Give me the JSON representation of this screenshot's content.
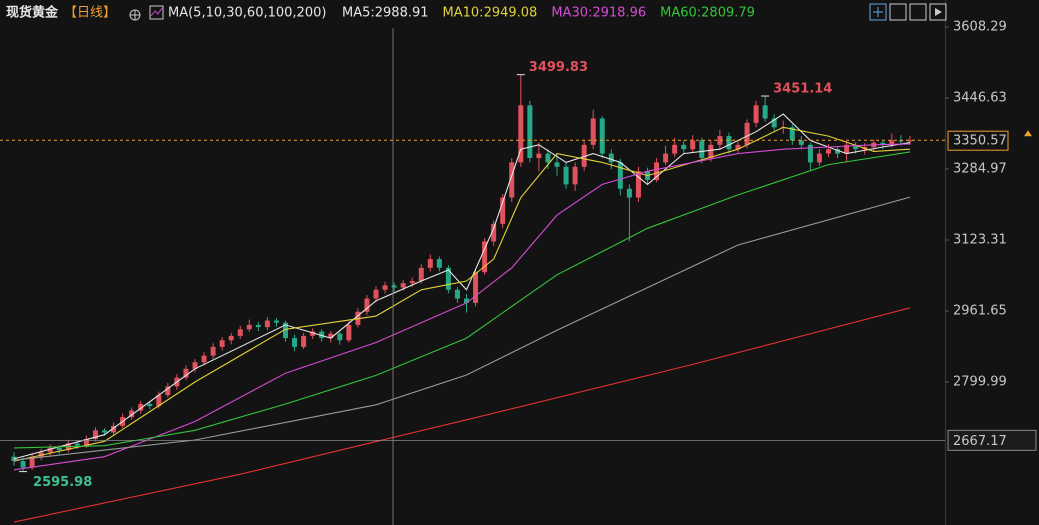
{
  "chart_data": {
    "type": "candlestick",
    "title": "现货黄金",
    "period": "【日线】",
    "ma_label": "MA(5,10,30,60,100,200)",
    "ma_legend": [
      {
        "text": "MA5:2988.91",
        "color": "#e6e6e6"
      },
      {
        "text": "MA10:2949.08",
        "color": "#e2d13a"
      },
      {
        "text": "MA30:2918.96",
        "color": "#d64bd6"
      },
      {
        "text": "MA60:2809.79",
        "color": "#35c43a"
      }
    ],
    "up_color": "#e0525e",
    "down_color": "#27a887",
    "ylim": [
      2474.4,
      3669.8
    ],
    "yticks": [
      3608.29,
      3446.63,
      3284.97,
      3123.31,
      2961.65,
      2799.99
    ],
    "crosshair_value": 2667.17,
    "ohlc": [
      [
        2630,
        2640,
        2610,
        2620
      ],
      [
        2620,
        2628,
        2595.98,
        2605
      ],
      [
        2605,
        2638,
        2600,
        2630
      ],
      [
        2630,
        2648,
        2622,
        2640
      ],
      [
        2640,
        2658,
        2632,
        2650
      ],
      [
        2650,
        2656,
        2636,
        2645
      ],
      [
        2645,
        2668,
        2640,
        2660
      ],
      [
        2660,
        2665,
        2648,
        2655
      ],
      [
        2655,
        2678,
        2650,
        2670
      ],
      [
        2670,
        2697,
        2665,
        2690
      ],
      [
        2690,
        2695,
        2678,
        2685
      ],
      [
        2685,
        2708,
        2680,
        2700
      ],
      [
        2700,
        2728,
        2695,
        2720
      ],
      [
        2720,
        2742,
        2714,
        2735
      ],
      [
        2735,
        2757,
        2728,
        2750
      ],
      [
        2750,
        2756,
        2738,
        2745
      ],
      [
        2745,
        2778,
        2740,
        2770
      ],
      [
        2770,
        2798,
        2765,
        2790
      ],
      [
        2790,
        2818,
        2782,
        2810
      ],
      [
        2810,
        2838,
        2804,
        2830
      ],
      [
        2830,
        2852,
        2822,
        2845
      ],
      [
        2845,
        2868,
        2838,
        2860
      ],
      [
        2860,
        2888,
        2852,
        2880
      ],
      [
        2880,
        2902,
        2872,
        2895
      ],
      [
        2895,
        2912,
        2886,
        2905
      ],
      [
        2905,
        2928,
        2898,
        2920
      ],
      [
        2920,
        2942,
        2914,
        2930
      ],
      [
        2930,
        2936,
        2916,
        2925
      ],
      [
        2925,
        2948,
        2918,
        2940
      ],
      [
        2940,
        2946,
        2926,
        2935
      ],
      [
        2935,
        2940,
        2892,
        2900
      ],
      [
        2900,
        2908,
        2870,
        2880
      ],
      [
        2880,
        2912,
        2875,
        2905
      ],
      [
        2905,
        2922,
        2898,
        2915
      ],
      [
        2915,
        2920,
        2892,
        2900
      ],
      [
        2900,
        2916,
        2890,
        2910
      ],
      [
        2910,
        2914,
        2885,
        2895
      ],
      [
        2895,
        2938,
        2890,
        2930
      ],
      [
        2930,
        2968,
        2924,
        2960
      ],
      [
        2960,
        2998,
        2952,
        2990
      ],
      [
        2990,
        3018,
        2982,
        3010
      ],
      [
        3010,
        3028,
        3002,
        3020
      ],
      [
        3020,
        3026,
        3006,
        3015
      ],
      [
        3015,
        3032,
        3008,
        3025
      ],
      [
        3025,
        3038,
        3016,
        3030
      ],
      [
        3030,
        3068,
        3024,
        3060
      ],
      [
        3060,
        3090,
        3052,
        3080
      ],
      [
        3080,
        3086,
        3052,
        3060
      ],
      [
        3060,
        3066,
        3002,
        3010
      ],
      [
        3010,
        3016,
        2980,
        2990
      ],
      [
        2990,
        3000,
        2958,
        2980
      ],
      [
        2980,
        3058,
        2972,
        3050
      ],
      [
        3050,
        3128,
        3044,
        3120
      ],
      [
        3120,
        3168,
        3110,
        3160
      ],
      [
        3160,
        3228,
        3150,
        3220
      ],
      [
        3220,
        3310,
        3210,
        3300
      ],
      [
        3300,
        3499.83,
        3290,
        3430
      ],
      [
        3430,
        3440,
        3300,
        3310
      ],
      [
        3310,
        3345,
        3280,
        3320
      ],
      [
        3320,
        3330,
        3285,
        3300
      ],
      [
        3300,
        3318,
        3270,
        3290
      ],
      [
        3290,
        3300,
        3240,
        3250
      ],
      [
        3250,
        3300,
        3235,
        3290
      ],
      [
        3290,
        3350,
        3280,
        3340
      ],
      [
        3340,
        3420,
        3330,
        3400
      ],
      [
        3400,
        3405,
        3310,
        3320
      ],
      [
        3320,
        3330,
        3285,
        3300
      ],
      [
        3300,
        3308,
        3225,
        3240
      ],
      [
        3240,
        3250,
        3120,
        3220
      ],
      [
        3220,
        3290,
        3210,
        3280
      ],
      [
        3280,
        3288,
        3250,
        3260
      ],
      [
        3260,
        3310,
        3255,
        3300
      ],
      [
        3300,
        3338,
        3294,
        3320
      ],
      [
        3320,
        3356,
        3312,
        3340
      ],
      [
        3340,
        3350,
        3318,
        3330
      ],
      [
        3330,
        3362,
        3322,
        3350
      ],
      [
        3350,
        3356,
        3298,
        3310
      ],
      [
        3310,
        3350,
        3302,
        3340
      ],
      [
        3340,
        3374,
        3330,
        3360
      ],
      [
        3360,
        3368,
        3320,
        3330
      ],
      [
        3330,
        3350,
        3322,
        3340
      ],
      [
        3340,
        3398,
        3332,
        3390
      ],
      [
        3390,
        3440,
        3380,
        3430
      ],
      [
        3430,
        3451.14,
        3392,
        3400
      ],
      [
        3400,
        3410,
        3372,
        3380
      ],
      [
        3380,
        3395,
        3365,
        3380
      ],
      [
        3380,
        3386,
        3340,
        3350
      ],
      [
        3350,
        3360,
        3330,
        3340
      ],
      [
        3340,
        3345,
        3280,
        3300
      ],
      [
        3300,
        3330,
        3292,
        3320
      ],
      [
        3320,
        3342,
        3312,
        3330
      ],
      [
        3330,
        3336,
        3310,
        3320
      ],
      [
        3320,
        3348,
        3302,
        3340
      ],
      [
        3340,
        3346,
        3320,
        3330
      ],
      [
        3330,
        3344,
        3318,
        3335
      ],
      [
        3335,
        3352,
        3326,
        3345
      ],
      [
        3345,
        3350,
        3330,
        3340
      ],
      [
        3340,
        3366,
        3334,
        3350
      ],
      [
        3350,
        3362,
        3338,
        3348
      ],
      [
        3348,
        3360,
        3340,
        3350.57
      ]
    ],
    "ma_lines": [
      {
        "color": "#e6e6e6",
        "x": [
          0,
          10,
          20,
          30,
          35,
          40,
          45,
          48,
          50,
          53,
          56,
          58,
          61,
          64,
          67,
          70,
          74,
          78,
          82,
          85,
          88,
          92,
          96,
          99
        ],
        "values": [
          2625,
          2680,
          2830,
          2930,
          2900,
          2985,
          3030,
          3055,
          3010,
          3150,
          3330,
          3340,
          3300,
          3320,
          3300,
          3250,
          3320,
          3330,
          3370,
          3410,
          3350,
          3320,
          3335,
          3345
        ]
      },
      {
        "color": "#e2d13a",
        "x": [
          0,
          10,
          20,
          30,
          40,
          45,
          50,
          53,
          56,
          60,
          65,
          70,
          75,
          80,
          85,
          90,
          95,
          99
        ],
        "values": [
          2620,
          2665,
          2800,
          2920,
          2950,
          3010,
          3030,
          3080,
          3220,
          3320,
          3300,
          3270,
          3300,
          3330,
          3380,
          3360,
          3325,
          3330
        ]
      },
      {
        "color": "#d64bd6",
        "x": [
          0,
          10,
          20,
          30,
          40,
          50,
          55,
          60,
          65,
          70,
          75,
          80,
          85,
          90,
          95,
          99
        ],
        "values": [
          2600,
          2630,
          2710,
          2820,
          2890,
          2980,
          3060,
          3180,
          3250,
          3280,
          3300,
          3320,
          3330,
          3335,
          3340,
          3342
        ]
      },
      {
        "color": "#35c43a",
        "x": [
          0,
          10,
          20,
          30,
          40,
          50,
          60,
          70,
          80,
          90,
          99
        ],
        "values": [
          2650,
          2655,
          2690,
          2750,
          2815,
          2900,
          3044,
          3150,
          3226,
          3295,
          3324
        ]
      },
      {
        "color": "#9a9a9a",
        "x": [
          0,
          20,
          40,
          50,
          60,
          80,
          99
        ],
        "values": [
          2622,
          2668,
          2748,
          2816,
          2918,
          3112,
          3221
        ]
      },
      {
        "color": "#e23232",
        "x": [
          0,
          25,
          50,
          75,
          99
        ],
        "values": [
          2481,
          2590,
          2714,
          2840,
          2969
        ]
      }
    ]
  }
}
